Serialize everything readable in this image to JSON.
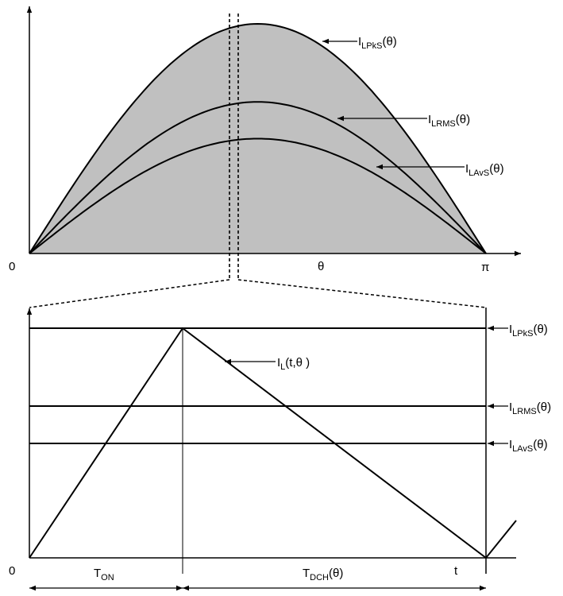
{
  "colors": {
    "fill": "#c0c0c0",
    "stroke": "#000000",
    "background": "#ffffff"
  },
  "top_plot": {
    "origin_label": "0",
    "theta_label": "θ",
    "pi_label": "π",
    "curves": [
      {
        "name": "peak",
        "main": "I",
        "sub": "LPkS",
        "arg": "(θ)",
        "relative_amplitude": 1.0
      },
      {
        "name": "rms",
        "main": "I",
        "sub": "LRMS",
        "arg": "(θ)",
        "relative_amplitude": 0.66
      },
      {
        "name": "avg",
        "main": "I",
        "sub": "LAvS",
        "arg": "(θ)",
        "relative_amplitude": 0.5
      }
    ]
  },
  "bottom_plot": {
    "origin_label": "0",
    "t_label": "t",
    "current_label": {
      "main": "I",
      "sub": "L",
      "arg": "(t,θ )"
    },
    "levels": [
      {
        "name": "peak",
        "main": "I",
        "sub": "LPkS",
        "arg": "(θ)"
      },
      {
        "name": "rms",
        "main": "I",
        "sub": "LRMS",
        "arg": "(θ)"
      },
      {
        "name": "avg",
        "main": "I",
        "sub": "LAvS",
        "arg": "(θ)"
      }
    ],
    "intervals": {
      "on": {
        "main": "T",
        "sub": "ON",
        "arg": ""
      },
      "dch": {
        "main": "T",
        "sub": "DCH",
        "arg": "(θ)"
      }
    }
  }
}
